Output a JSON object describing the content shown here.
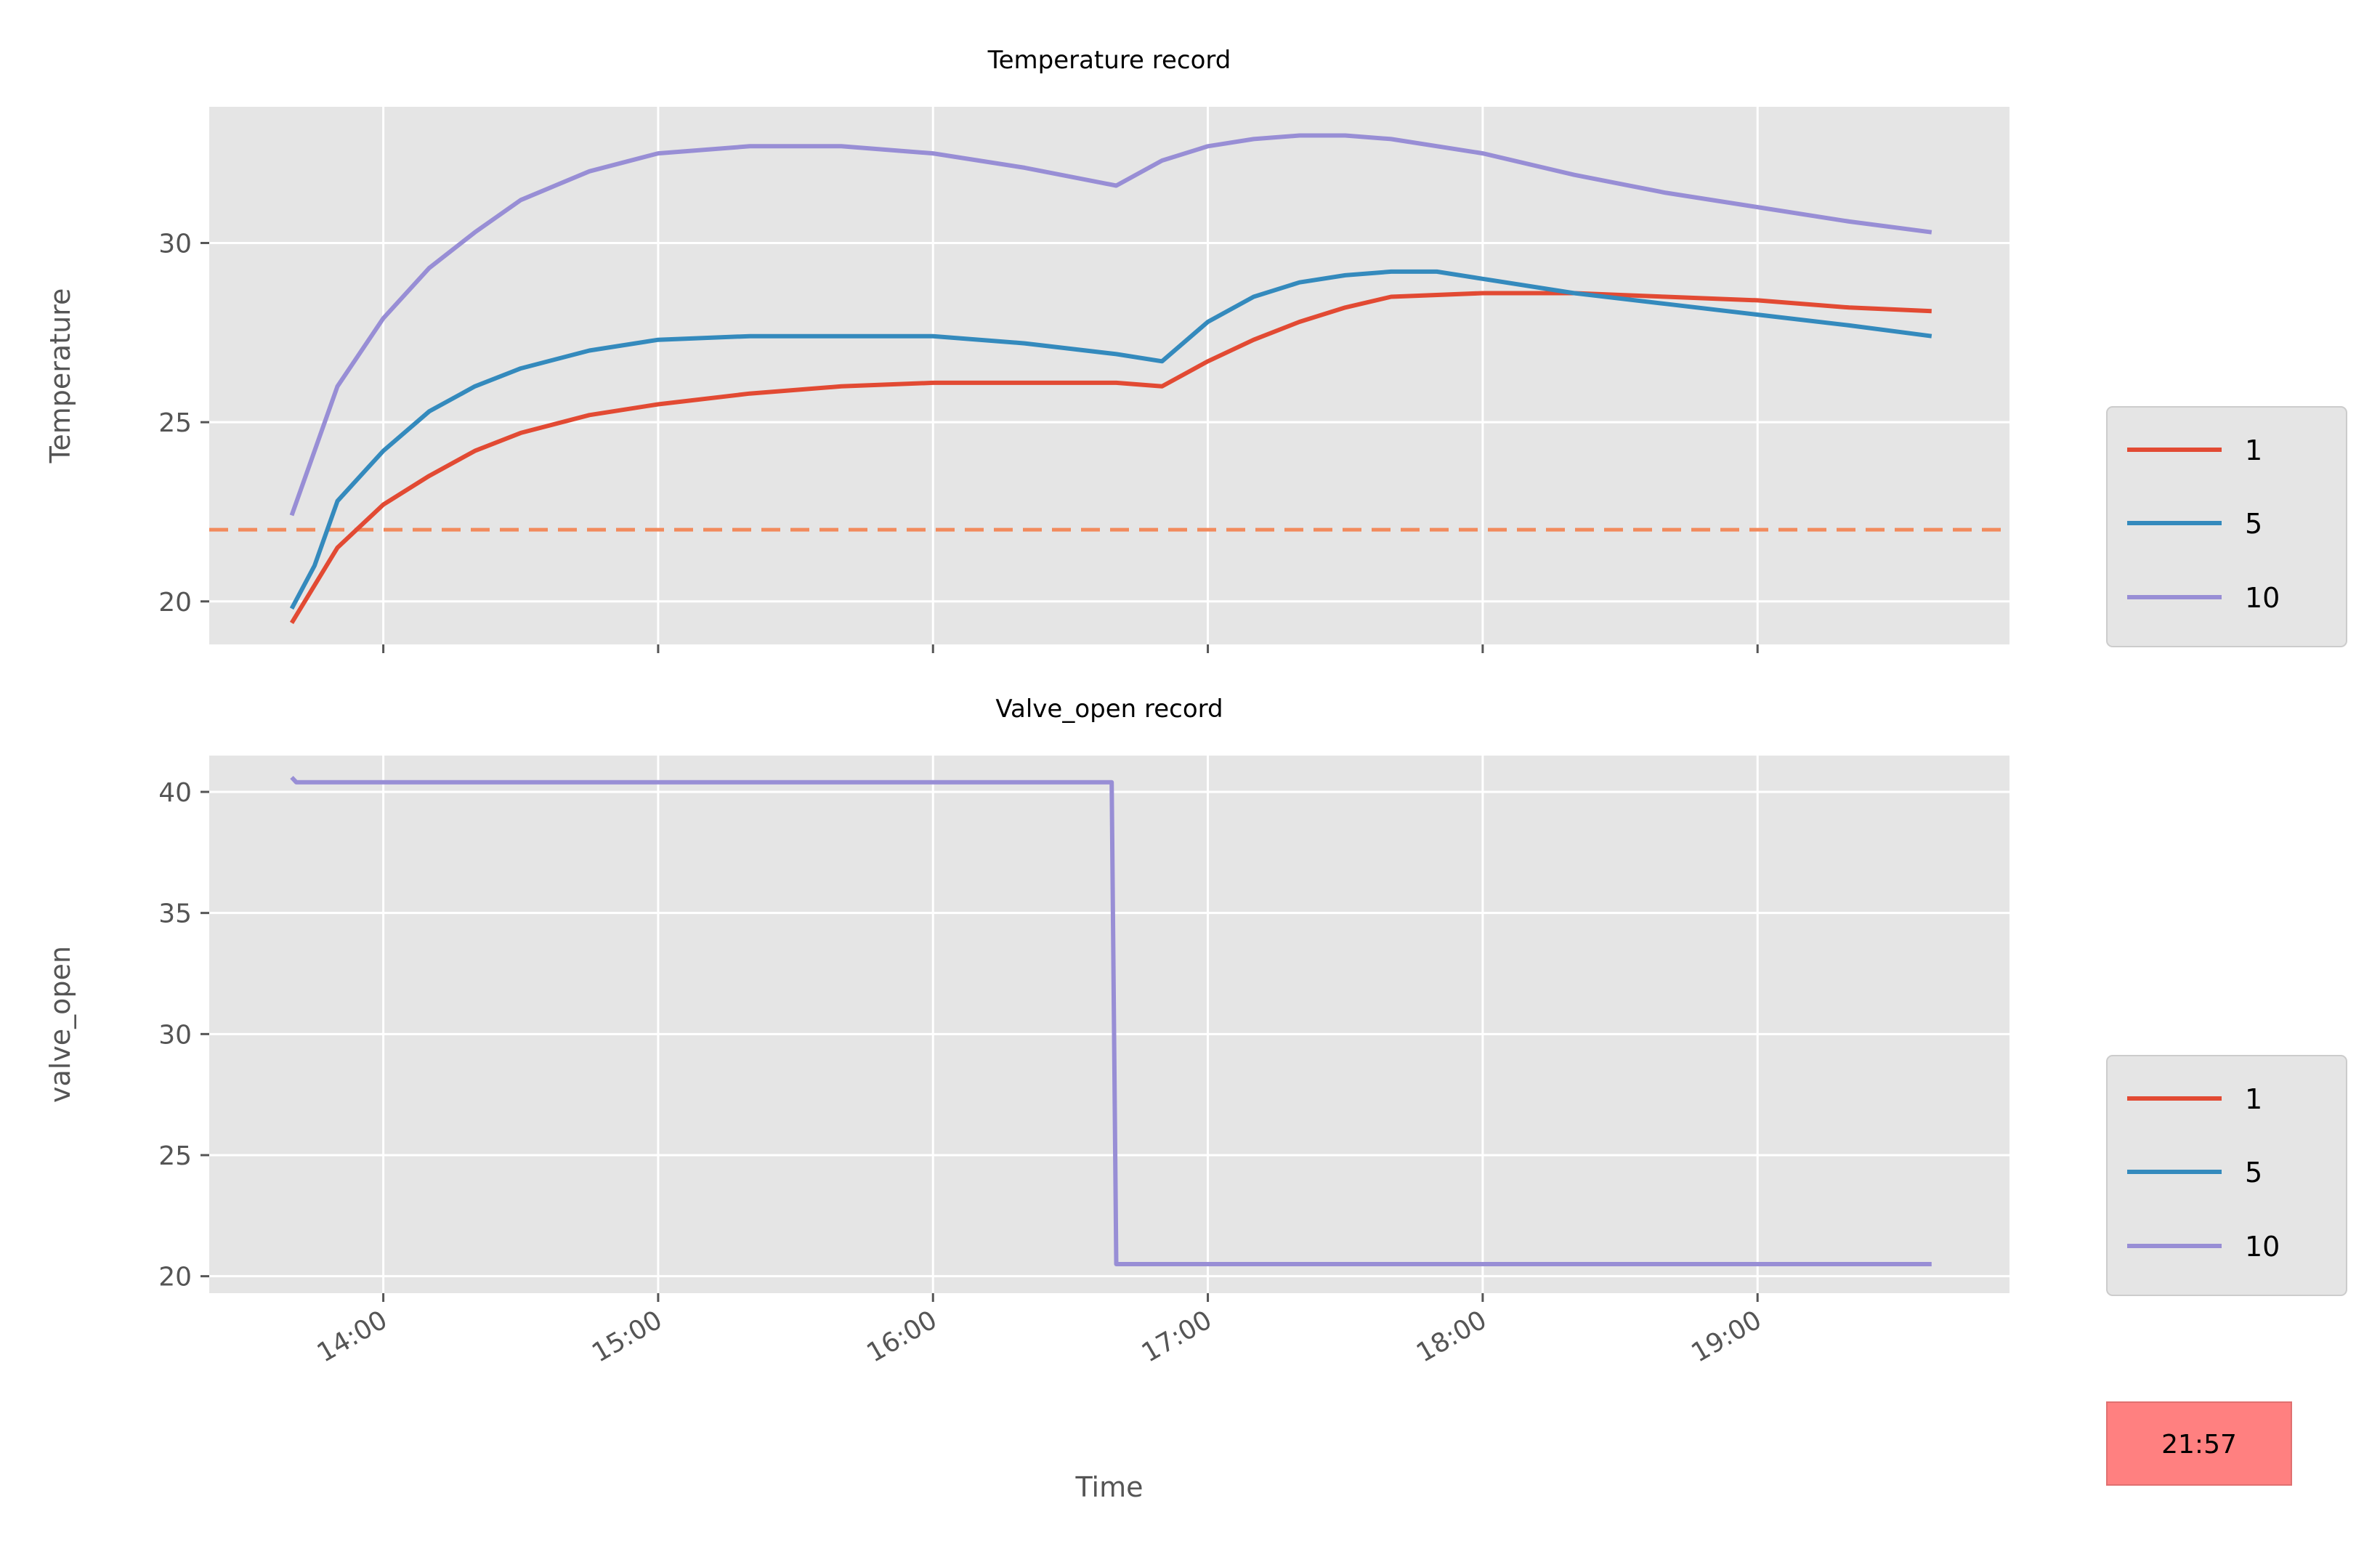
{
  "colors": {
    "series_1": "#E24A33",
    "series_5": "#348ABD",
    "series_10": "#988ED5",
    "setpoint": "#f28a5c",
    "axes_bg": "#E5E5E5",
    "badge_bg": "#ff8080"
  },
  "badge": {
    "text": "21:57"
  },
  "x_axis": {
    "label": "Time",
    "ticks": [
      "14:00",
      "15:00",
      "16:00",
      "17:00",
      "18:00",
      "19:00"
    ]
  },
  "chart_data": [
    {
      "type": "line",
      "title": "Temperature record",
      "xlabel": "",
      "ylabel": "Temperature",
      "xlim": [
        "13:22",
        "19:55"
      ],
      "ylim": [
        18.8,
        33.8
      ],
      "yticks": [
        20,
        25,
        30
      ],
      "grid": true,
      "legend": "right",
      "hline": {
        "y": 22,
        "style": "dashed",
        "color": "#f28a5c"
      },
      "series": [
        {
          "name": "1",
          "color": "#E24A33",
          "x": [
            "13:40",
            "13:50",
            "14:00",
            "14:10",
            "14:20",
            "14:30",
            "14:45",
            "15:00",
            "15:20",
            "15:40",
            "16:00",
            "16:20",
            "16:40",
            "16:50",
            "17:00",
            "17:10",
            "17:20",
            "17:30",
            "17:40",
            "18:00",
            "18:20",
            "18:40",
            "19:00",
            "19:20",
            "19:38"
          ],
          "y": [
            19.4,
            21.5,
            22.7,
            23.5,
            24.2,
            24.7,
            25.2,
            25.5,
            25.8,
            26.0,
            26.1,
            26.1,
            26.1,
            26.0,
            26.7,
            27.3,
            27.8,
            28.2,
            28.5,
            28.6,
            28.6,
            28.5,
            28.4,
            28.2,
            28.1
          ]
        },
        {
          "name": "5",
          "color": "#348ABD",
          "x": [
            "13:40",
            "13:45",
            "13:50",
            "14:00",
            "14:10",
            "14:20",
            "14:30",
            "14:45",
            "15:00",
            "15:20",
            "15:40",
            "16:00",
            "16:20",
            "16:40",
            "16:50",
            "17:00",
            "17:10",
            "17:20",
            "17:30",
            "17:40",
            "17:50",
            "18:00",
            "18:20",
            "18:40",
            "19:00",
            "19:20",
            "19:38"
          ],
          "y": [
            19.8,
            21.0,
            22.8,
            24.2,
            25.3,
            26.0,
            26.5,
            27.0,
            27.3,
            27.4,
            27.4,
            27.4,
            27.2,
            26.9,
            26.7,
            27.8,
            28.5,
            28.9,
            29.1,
            29.2,
            29.2,
            29.0,
            28.6,
            28.3,
            28.0,
            27.7,
            27.4
          ]
        },
        {
          "name": "10",
          "color": "#988ED5",
          "x": [
            "13:40",
            "13:50",
            "14:00",
            "14:10",
            "14:20",
            "14:30",
            "14:45",
            "15:00",
            "15:20",
            "15:40",
            "16:00",
            "16:20",
            "16:40",
            "16:50",
            "17:00",
            "17:10",
            "17:20",
            "17:30",
            "17:40",
            "18:00",
            "18:20",
            "18:40",
            "19:00",
            "19:20",
            "19:38"
          ],
          "y": [
            22.4,
            26.0,
            27.9,
            29.3,
            30.3,
            31.2,
            32.0,
            32.5,
            32.7,
            32.7,
            32.5,
            32.1,
            31.6,
            32.3,
            32.7,
            32.9,
            33.0,
            33.0,
            32.9,
            32.5,
            31.9,
            31.4,
            31.0,
            30.6,
            30.3
          ]
        }
      ]
    },
    {
      "type": "line",
      "title": "Valve_open record",
      "xlabel": "Time",
      "ylabel": "valve_open",
      "xlim": [
        "13:22",
        "19:55"
      ],
      "ylim": [
        19.3,
        41.5
      ],
      "yticks": [
        20,
        25,
        30,
        35,
        40
      ],
      "grid": true,
      "legend": "right",
      "series": [
        {
          "name": "1",
          "color": "#E24A33",
          "x": [],
          "y": []
        },
        {
          "name": "5",
          "color": "#348ABD",
          "x": [],
          "y": []
        },
        {
          "name": "10",
          "color": "#988ED5",
          "x": [
            "13:40",
            "13:41",
            "16:39",
            "16:40",
            "19:38"
          ],
          "y": [
            40.6,
            40.4,
            40.4,
            20.5,
            20.5
          ]
        }
      ]
    }
  ]
}
